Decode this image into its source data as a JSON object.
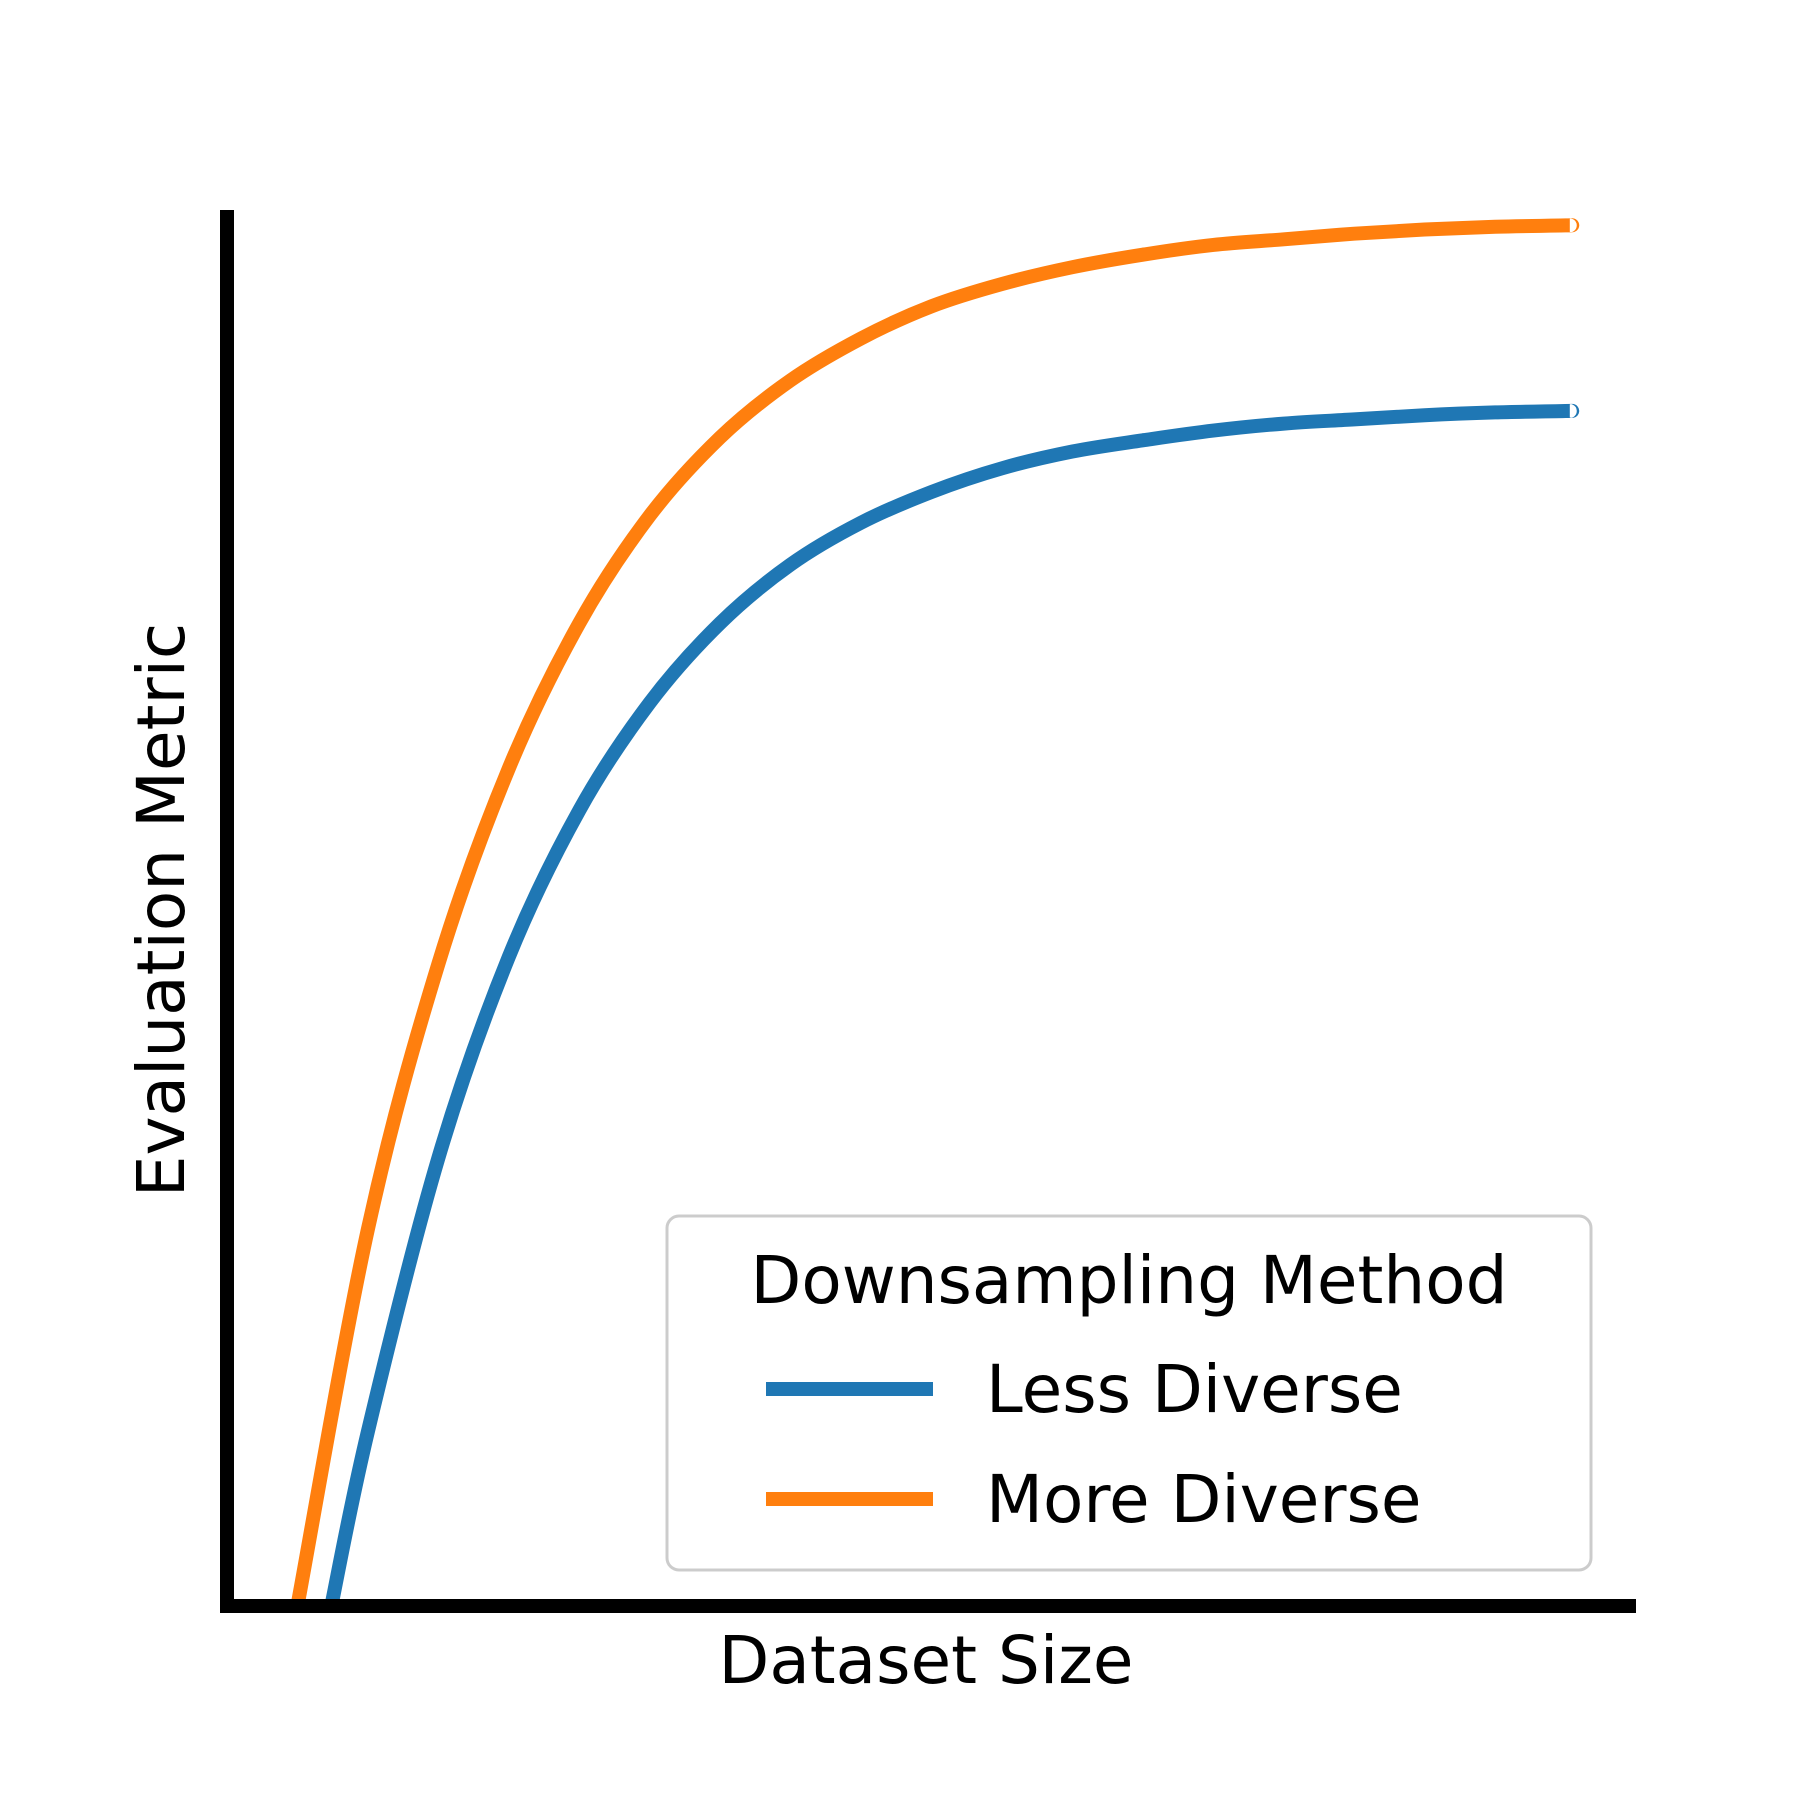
{
  "chart_data": {
    "type": "line",
    "title": "",
    "xlabel": "Dataset Size",
    "ylabel": "Evaluation Metric",
    "xlim": [
      0,
      100
    ],
    "ylim": [
      0,
      100
    ],
    "grid": false,
    "ticks_shown": false,
    "legend": {
      "title": "Downsampling Method",
      "placement": "lower-right"
    },
    "series": [
      {
        "name": "Less Diverse",
        "color": "#1f77b4",
        "x": [
          7.4,
          10,
          15,
          20,
          25,
          30,
          35,
          40,
          45,
          50,
          55,
          60,
          65,
          70,
          75,
          80,
          85,
          90,
          95,
          95.3
        ],
        "y": [
          0,
          12.5,
          32.1,
          46.5,
          57.0,
          64.7,
          70.4,
          74.6,
          77.6,
          79.8,
          81.5,
          82.7,
          83.5,
          84.2,
          84.7,
          85.0,
          85.3,
          85.5,
          85.6,
          85.6
        ]
      },
      {
        "name": "More Diverse",
        "color": "#ff7f0e",
        "x": [
          5.0,
          10,
          15,
          20,
          25,
          30,
          35,
          40,
          45,
          50,
          55,
          60,
          65,
          70,
          75,
          80,
          85,
          90,
          95,
          95.3
        ],
        "y": [
          0,
          27.0,
          46.0,
          60.0,
          70.4,
          78.1,
          83.7,
          87.8,
          90.8,
          93.1,
          94.7,
          95.9,
          96.8,
          97.5,
          97.9,
          98.3,
          98.6,
          98.8,
          98.9,
          98.9
        ]
      }
    ]
  }
}
